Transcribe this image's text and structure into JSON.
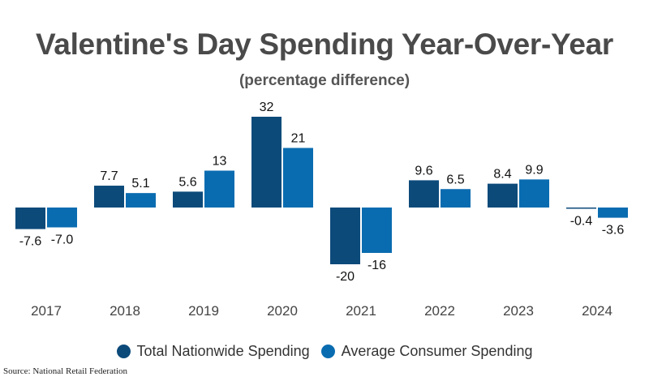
{
  "chart_data": {
    "type": "bar",
    "title": "Valentine's Day Spending Year-Over-Year",
    "subtitle": "(percentage difference)",
    "categories": [
      "2017",
      "2018",
      "2019",
      "2020",
      "2021",
      "2022",
      "2023",
      "2024"
    ],
    "series": [
      {
        "name": "Total Nationwide Spending",
        "color": "#0c4a7a",
        "values": [
          -7.6,
          7.7,
          5.6,
          32,
          -20,
          9.6,
          8.4,
          -0.4
        ]
      },
      {
        "name": "Average Consumer Spending",
        "color": "#0a6cb0",
        "values": [
          -7.0,
          5.1,
          13,
          21,
          -16,
          6.5,
          9.9,
          -3.6
        ]
      }
    ],
    "value_labels": [
      [
        "-7.6",
        "7.7",
        "5.6",
        "32",
        "-20",
        "9.6",
        "8.4",
        "-0.4"
      ],
      [
        "-7.0",
        "5.1",
        "13",
        "21",
        "-16",
        "6.5",
        "9.9",
        "-3.6"
      ]
    ],
    "xlabel": "",
    "ylabel": "",
    "ylim": [
      -20,
      32
    ],
    "grid": false,
    "legend": "bottom",
    "source": "Source: National Retail Federation"
  }
}
